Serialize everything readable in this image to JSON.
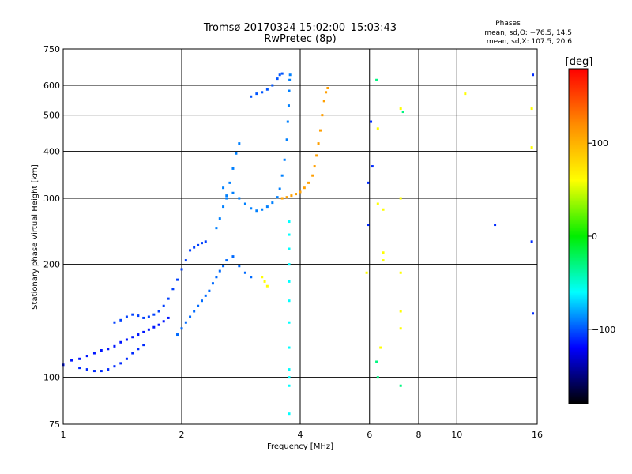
{
  "chart_data": {
    "type": "scatter",
    "title": "Tromsø 20170324 15:02:00–15:03:43",
    "subtitle": "RwPretec (8p)",
    "xlabel": "Frequency [MHz]",
    "ylabel": "Stationary phase Virtual Height [km]",
    "x_scale": "log",
    "y_scale": "log",
    "xlim": [
      1,
      16
    ],
    "ylim": [
      75,
      750
    ],
    "x_ticks": [
      1,
      2,
      4,
      6,
      8,
      10,
      16
    ],
    "x_tick_labels": [
      "1",
      "2",
      "4",
      "6",
      "8",
      "10",
      "16"
    ],
    "y_ticks": [
      75,
      100,
      200,
      300,
      400,
      500,
      600,
      750
    ],
    "y_tick_labels": [
      "75",
      "100",
      "200",
      "300",
      "400",
      "500",
      "600",
      "750"
    ],
    "grid": true,
    "phases": {
      "heading": "Phases",
      "line_o": "mean, sd,O: −76.5, 14.5",
      "line_x": "mean, sd,X: 107.5, 20.6"
    },
    "colorbar": {
      "label": "[deg]",
      "range": [
        -180,
        180
      ],
      "ticks": [
        100,
        0,
        -100
      ],
      "tick_labels": [
        "100",
        "0",
        "−100"
      ],
      "colors": [
        "#ff0000",
        "#ff8c00",
        "#ffff00",
        "#00ee00",
        "#00ffff",
        "#0000ff",
        "#000000"
      ]
    },
    "traces": [
      {
        "name_hint": "low-frequency sporadic trace",
        "phase": -115,
        "points": [
          [
            1.0,
            108
          ],
          [
            1.05,
            111
          ],
          [
            1.1,
            112
          ],
          [
            1.15,
            114
          ],
          [
            1.2,
            116
          ],
          [
            1.25,
            118
          ],
          [
            1.3,
            119
          ],
          [
            1.35,
            121
          ],
          [
            1.4,
            124
          ],
          [
            1.45,
            126
          ],
          [
            1.5,
            128
          ],
          [
            1.55,
            130
          ],
          [
            1.6,
            132
          ],
          [
            1.65,
            134
          ],
          [
            1.7,
            136
          ],
          [
            1.75,
            138
          ],
          [
            1.8,
            141
          ],
          [
            1.85,
            144
          ]
        ]
      },
      {
        "name_hint": "low trace lower branch",
        "phase": -110,
        "points": [
          [
            1.1,
            106
          ],
          [
            1.15,
            105
          ],
          [
            1.2,
            104
          ],
          [
            1.25,
            104
          ],
          [
            1.3,
            105
          ],
          [
            1.35,
            107
          ],
          [
            1.4,
            109
          ],
          [
            1.45,
            112
          ],
          [
            1.5,
            116
          ],
          [
            1.55,
            119
          ],
          [
            1.6,
            122
          ]
        ]
      },
      {
        "name_hint": "mid trace",
        "phase": -105,
        "points": [
          [
            1.35,
            140
          ],
          [
            1.4,
            142
          ],
          [
            1.45,
            145
          ],
          [
            1.5,
            147
          ],
          [
            1.55,
            146
          ],
          [
            1.6,
            144
          ],
          [
            1.65,
            145
          ],
          [
            1.7,
            147
          ],
          [
            1.75,
            150
          ],
          [
            1.8,
            155
          ],
          [
            1.85,
            162
          ],
          [
            1.9,
            172
          ],
          [
            1.95,
            182
          ],
          [
            2.0,
            194
          ],
          [
            2.05,
            205
          ],
          [
            2.1,
            218
          ],
          [
            2.15,
            222
          ],
          [
            2.2,
            225
          ],
          [
            2.25,
            228
          ],
          [
            2.3,
            230
          ]
        ]
      },
      {
        "name_hint": "E-F1 region cluster",
        "phase": -95,
        "points": [
          [
            1.95,
            130
          ],
          [
            2.0,
            135
          ],
          [
            2.05,
            140
          ],
          [
            2.1,
            145
          ],
          [
            2.15,
            150
          ],
          [
            2.2,
            155
          ],
          [
            2.25,
            160
          ],
          [
            2.3,
            165
          ],
          [
            2.35,
            170
          ],
          [
            2.4,
            178
          ],
          [
            2.45,
            185
          ],
          [
            2.5,
            192
          ],
          [
            2.55,
            198
          ],
          [
            2.6,
            205
          ],
          [
            2.7,
            210
          ],
          [
            2.8,
            198
          ],
          [
            2.9,
            190
          ],
          [
            3.0,
            185
          ]
        ]
      },
      {
        "name_hint": "F2 O-mode cusp",
        "phase": -90,
        "points": [
          [
            2.45,
            250
          ],
          [
            2.5,
            265
          ],
          [
            2.55,
            285
          ],
          [
            2.6,
            305
          ],
          [
            2.65,
            330
          ],
          [
            2.7,
            360
          ],
          [
            2.75,
            395
          ],
          [
            2.8,
            420
          ],
          [
            2.6,
            300
          ],
          [
            2.55,
            320
          ],
          [
            2.7,
            310
          ],
          [
            2.8,
            300
          ],
          [
            2.9,
            290
          ],
          [
            3.0,
            282
          ],
          [
            3.1,
            278
          ],
          [
            3.2,
            280
          ],
          [
            3.3,
            285
          ],
          [
            3.4,
            292
          ],
          [
            3.5,
            302
          ],
          [
            3.55,
            318
          ],
          [
            3.6,
            345
          ],
          [
            3.65,
            380
          ],
          [
            3.7,
            430
          ],
          [
            3.72,
            480
          ],
          [
            3.74,
            530
          ],
          [
            3.75,
            580
          ],
          [
            3.76,
            620
          ],
          [
            3.77,
            640
          ]
        ]
      },
      {
        "name_hint": "F2 upper arc",
        "phase": -100,
        "points": [
          [
            3.0,
            560
          ],
          [
            3.1,
            570
          ],
          [
            3.2,
            575
          ],
          [
            3.3,
            585
          ],
          [
            3.4,
            600
          ],
          [
            3.5,
            625
          ],
          [
            3.55,
            640
          ],
          [
            3.6,
            645
          ]
        ]
      },
      {
        "name_hint": "F2 X-mode",
        "phase": 110,
        "points": [
          [
            3.6,
            300
          ],
          [
            3.7,
            302
          ],
          [
            3.8,
            305
          ],
          [
            3.9,
            308
          ],
          [
            4.0,
            312
          ],
          [
            4.1,
            320
          ],
          [
            4.2,
            330
          ],
          [
            4.3,
            345
          ],
          [
            4.35,
            365
          ],
          [
            4.4,
            390
          ],
          [
            4.45,
            420
          ],
          [
            4.5,
            455
          ],
          [
            4.55,
            500
          ],
          [
            4.6,
            545
          ],
          [
            4.65,
            575
          ],
          [
            4.7,
            590
          ]
        ]
      },
      {
        "name_hint": "vertical streak near 3.75 MHz",
        "phase": -60,
        "points": [
          [
            3.75,
            80
          ],
          [
            3.75,
            95
          ],
          [
            3.75,
            100
          ],
          [
            3.75,
            105
          ],
          [
            3.75,
            120
          ],
          [
            3.75,
            140
          ],
          [
            3.75,
            160
          ],
          [
            3.75,
            180
          ],
          [
            3.75,
            200
          ],
          [
            3.75,
            220
          ],
          [
            3.75,
            240
          ],
          [
            3.75,
            260
          ]
        ]
      },
      {
        "name_hint": "scattered points",
        "phase": 60,
        "points": [
          [
            3.2,
            185
          ],
          [
            3.25,
            180
          ],
          [
            3.3,
            175
          ],
          [
            5.9,
            190
          ],
          [
            6.3,
            460
          ],
          [
            6.3,
            290
          ],
          [
            6.4,
            120
          ],
          [
            6.5,
            280
          ],
          [
            6.5,
            215
          ],
          [
            6.5,
            205
          ],
          [
            7.2,
            300
          ],
          [
            7.2,
            190
          ],
          [
            7.2,
            150
          ],
          [
            7.2,
            135
          ],
          [
            7.2,
            520
          ],
          [
            10.5,
            570
          ],
          [
            15.5,
            520
          ],
          [
            15.5,
            410
          ]
        ]
      },
      {
        "name_hint": "scattered blue points",
        "phase": -110,
        "points": [
          [
            5.95,
            330
          ],
          [
            5.95,
            255
          ],
          [
            6.05,
            480
          ],
          [
            6.1,
            365
          ],
          [
            12.5,
            255
          ],
          [
            15.5,
            230
          ],
          [
            15.6,
            148
          ],
          [
            15.6,
            640
          ]
        ]
      },
      {
        "name_hint": "scattered cyan points",
        "phase": -30,
        "points": [
          [
            6.25,
            620
          ],
          [
            6.25,
            110
          ],
          [
            6.3,
            100
          ],
          [
            7.2,
            95
          ],
          [
            7.3,
            510
          ]
        ]
      }
    ]
  }
}
